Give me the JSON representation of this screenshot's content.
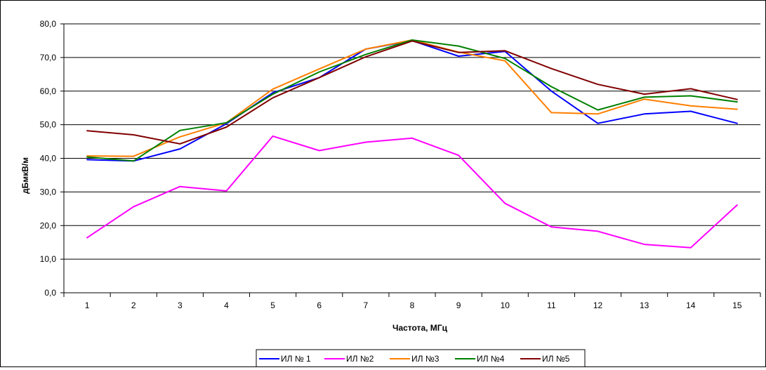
{
  "chart_data": {
    "type": "line",
    "title": "",
    "xlabel": "Частота, МГц",
    "ylabel": "дБмкВ/м",
    "categories": [
      "1",
      "2",
      "3",
      "4",
      "5",
      "6",
      "7",
      "8",
      "9",
      "10",
      "11",
      "12",
      "13",
      "14",
      "15"
    ],
    "ylim": [
      0,
      80
    ],
    "yticks": [
      "0,0",
      "10,0",
      "20,0",
      "30,0",
      "40,0",
      "50,0",
      "60,0",
      "70,0",
      "80,0"
    ],
    "grid": "horizontal",
    "legend_position": "bottom",
    "series": [
      {
        "name": "ИЛ № 1",
        "color": "#0000ff",
        "values": [
          39.6,
          39.2,
          42.8,
          50.3,
          59.5,
          64.0,
          72.5,
          75.0,
          70.4,
          71.8,
          60.0,
          50.4,
          53.2,
          54.0,
          50.4
        ]
      },
      {
        "name": "ИЛ №2",
        "color": "#ff00ff",
        "values": [
          16.4,
          25.6,
          31.6,
          30.3,
          46.6,
          42.3,
          44.8,
          46.0,
          40.9,
          26.6,
          19.6,
          18.3,
          14.4,
          13.4,
          26.1
        ]
      },
      {
        "name": "ИЛ №3",
        "color": "#ff7f00",
        "values": [
          40.7,
          40.6,
          46.4,
          50.6,
          60.6,
          66.6,
          72.5,
          75.2,
          71.6,
          69.0,
          53.6,
          53.2,
          57.6,
          55.6,
          54.6
        ]
      },
      {
        "name": "ИЛ №4",
        "color": "#008000",
        "values": [
          40.4,
          39.2,
          48.3,
          50.6,
          59.1,
          65.7,
          70.9,
          75.2,
          73.4,
          69.7,
          61.3,
          54.4,
          58.2,
          58.6,
          56.8
        ]
      },
      {
        "name": "ИЛ №5",
        "color": "#800000",
        "values": [
          48.2,
          47.0,
          44.3,
          49.3,
          58.0,
          64.0,
          70.2,
          74.9,
          71.5,
          72.0,
          66.7,
          62.0,
          59.1,
          60.7,
          57.5
        ]
      }
    ]
  }
}
